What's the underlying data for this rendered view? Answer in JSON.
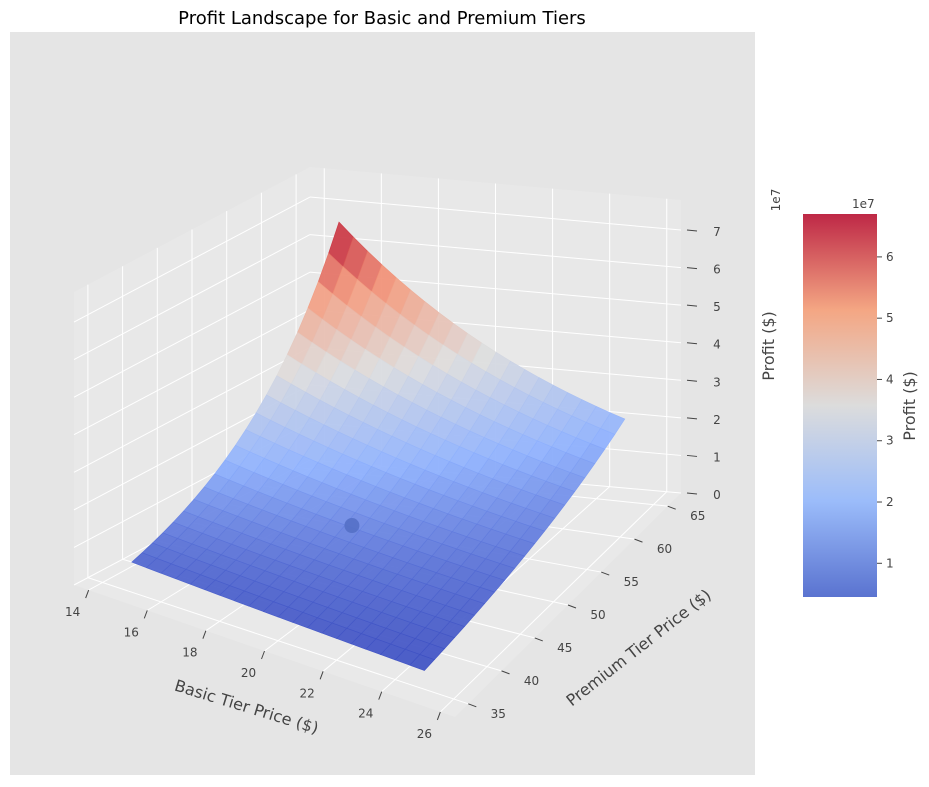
{
  "chart_data": {
    "type": "surface3d",
    "title": "Profit Landscape for Basic and Premium Tiers",
    "xlabel": "Basic Tier Price ($)",
    "ylabel": "Premium Tier Price ($)",
    "zlabel": "Profit ($)",
    "z_exponent_label": "1e7",
    "x_ticks": [
      "14",
      "16",
      "18",
      "20",
      "22",
      "24",
      "26"
    ],
    "y_ticks": [
      "35",
      "40",
      "45",
      "50",
      "55",
      "60",
      "65"
    ],
    "z_ticks": [
      "0",
      "1",
      "2",
      "3",
      "4",
      "5",
      "6",
      "7"
    ],
    "xlim": [
      13.5,
      26.5
    ],
    "ylim": [
      33,
      67
    ],
    "zlim": [
      0,
      78000000
    ],
    "surface": {
      "x_range": [
        15,
        25
      ],
      "y_range": [
        35,
        65
      ],
      "grid": [
        20,
        20
      ],
      "z_corners": {
        "x15_y35": 8000000,
        "x25_y35": 5000000,
        "x15_y65": 66500000,
        "x25_y65": 22000000
      },
      "colormap": "coolwarm",
      "clim": [
        4500000,
        67000000
      ]
    },
    "optimum_point": {
      "x": 19.5,
      "y": 48,
      "z": 12000000,
      "color": "#5470c6"
    },
    "colorbar": {
      "label": "Profit ($)",
      "exponent_label": "1e7",
      "ticks": [
        "1",
        "2",
        "3",
        "4",
        "5",
        "6"
      ],
      "tick_values": [
        10000000,
        20000000,
        30000000,
        40000000,
        50000000,
        60000000
      ],
      "range": [
        4500000,
        67000000
      ]
    },
    "background": "#e5e5e5",
    "grid": true
  }
}
